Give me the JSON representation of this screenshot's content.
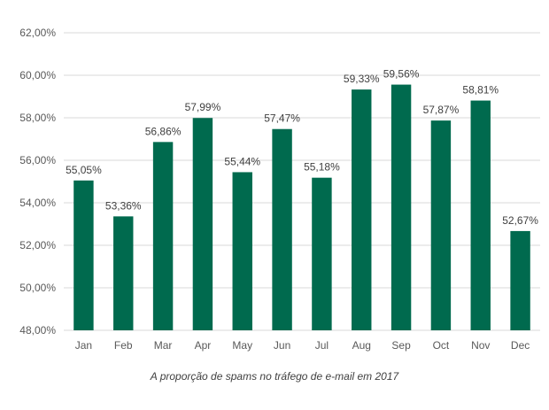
{
  "caption": "A proporção de spams no tráfego de e-mail em 2017",
  "chart_data": {
    "type": "bar",
    "categories": [
      "Jan",
      "Feb",
      "Mar",
      "Apr",
      "May",
      "Jun",
      "Jul",
      "Aug",
      "Sep",
      "Oct",
      "Nov",
      "Dec"
    ],
    "values": [
      55.05,
      53.36,
      56.86,
      57.99,
      55.44,
      57.47,
      55.18,
      59.33,
      59.56,
      57.87,
      58.81,
      52.67
    ],
    "value_labels": [
      "55,05%",
      "53,36%",
      "56,86%",
      "57,99%",
      "55,44%",
      "57,47%",
      "55,18%",
      "59,33%",
      "59,56%",
      "57,87%",
      "58,81%",
      "52,67%"
    ],
    "y_ticks": [
      48,
      50,
      52,
      54,
      56,
      58,
      60,
      62
    ],
    "y_tick_labels": [
      "48,00%",
      "50,00%",
      "52,00%",
      "54,00%",
      "56,00%",
      "58,00%",
      "60,00%",
      "62,00%"
    ],
    "ylim": [
      48,
      62
    ],
    "grid": true,
    "bar_color": "#006a4e",
    "title": "A proporção de spams no tráfego de e-mail em 2017",
    "xlabel": "",
    "ylabel": ""
  }
}
